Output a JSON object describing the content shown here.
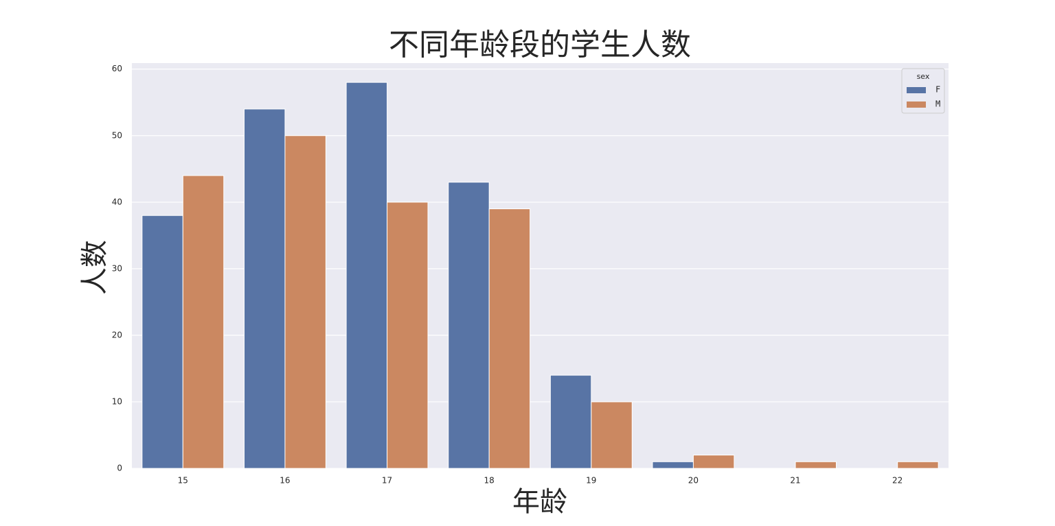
{
  "chart_data": {
    "type": "bar",
    "title": "不同年龄段的学生人数",
    "x_label": "年龄",
    "y_label": "人数",
    "categories": [
      "15",
      "16",
      "17",
      "18",
      "19",
      "20",
      "21",
      "22"
    ],
    "series": [
      {
        "name": "F",
        "color": "#5874a5",
        "values": [
          38,
          54,
          58,
          43,
          14,
          1,
          0,
          0
        ]
      },
      {
        "name": "M",
        "color": "#cb8861",
        "values": [
          44,
          50,
          40,
          39,
          10,
          2,
          1,
          1
        ]
      }
    ],
    "legend_title": "sex",
    "legend": "upper right",
    "ylim": [
      0,
      60.9
    ],
    "yticks": [
      0,
      10,
      20,
      30,
      40,
      50,
      60
    ],
    "grid": true
  }
}
